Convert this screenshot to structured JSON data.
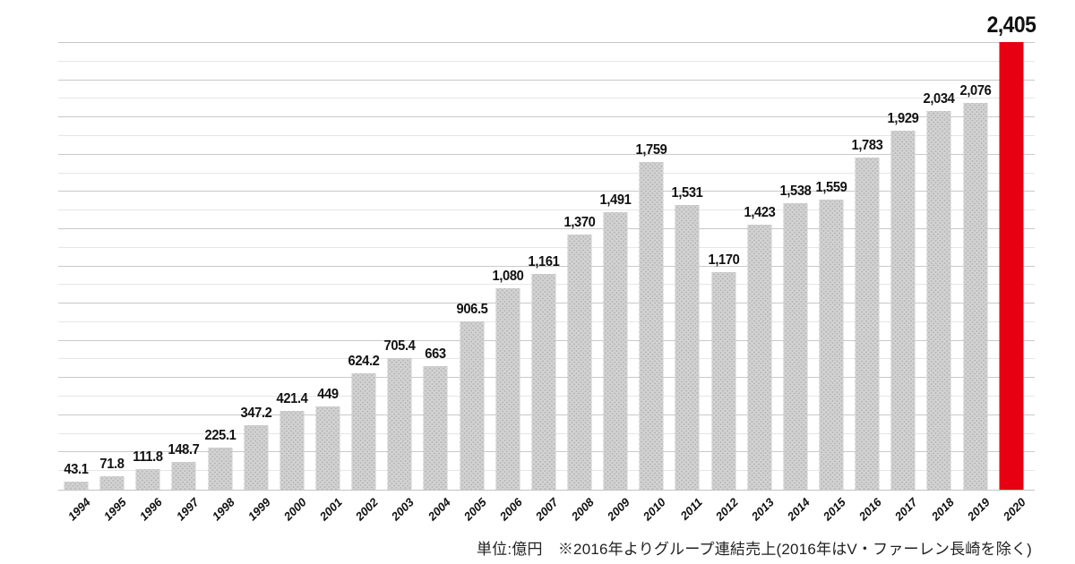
{
  "note": "単位:億円　※2016年よりグループ連結売上(2016年はV・ファーレン長崎を除く)",
  "chart_data": {
    "type": "bar",
    "title": "",
    "xlabel": "",
    "ylabel": "",
    "unit_label": "億円",
    "categories": [
      "1994",
      "1995",
      "1996",
      "1997",
      "1998",
      "1999",
      "2000",
      "2001",
      "2002",
      "2003",
      "2004",
      "2005",
      "2006",
      "2007",
      "2008",
      "2009",
      "2010",
      "2011",
      "2012",
      "2013",
      "2014",
      "2015",
      "2016",
      "2017",
      "2018",
      "2019",
      "2020"
    ],
    "values": [
      43.1,
      71.8,
      111.8,
      148.7,
      225.1,
      347.2,
      421.4,
      449,
      624.2,
      705.4,
      663,
      906.5,
      1080,
      1161,
      1370,
      1491,
      1759,
      1531,
      1170,
      1423,
      1538,
      1559,
      1783,
      1929,
      2034,
      2076,
      2405
    ],
    "value_labels": [
      "43.1",
      "71.8",
      "111.8",
      "148.7",
      "225.1",
      "347.2",
      "421.4",
      "449",
      "624.2",
      "705.4",
      "663",
      "906.5",
      "1,080",
      "1,161",
      "1,370",
      "1,491",
      "1,759",
      "1,531",
      "1,170",
      "1,423",
      "1,538",
      "1,559",
      "1,783",
      "1,929",
      "2,034",
      "2,076",
      "2,405"
    ],
    "highlight_index": 26,
    "ylim": [
      0,
      2405
    ],
    "gridline_step": 100,
    "grid": true,
    "legend_position": "none",
    "colors": {
      "bar": "#d2d2d2",
      "bar_dots": "#b7b7b7",
      "highlight": "#e60012",
      "gridline_major": "#c9c9c9",
      "gridline_minor": "#e6e6e6"
    }
  }
}
